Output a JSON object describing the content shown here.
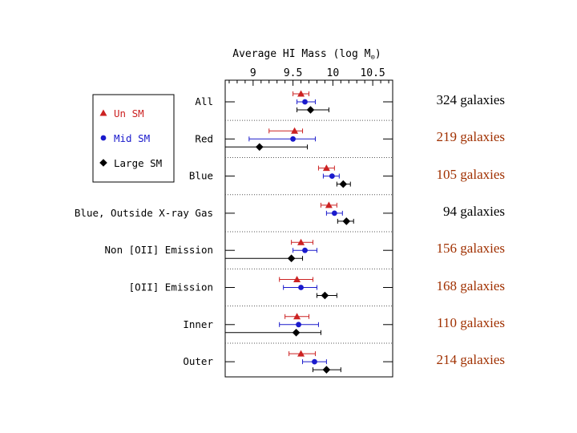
{
  "chart_data": {
    "type": "scatter",
    "title": "Average HI Mass (log M⊙)",
    "xlim": [
      8.65,
      10.75
    ],
    "x_ticks": [
      9,
      9.5,
      10,
      10.5
    ],
    "x_tick_labels": [
      "9",
      "9.5",
      "10",
      "10.5"
    ],
    "series_colors": [
      "#cc2222",
      "#1a1acc",
      "#000000"
    ],
    "legend": [
      {
        "label": "Un SM",
        "color": "#cc2222",
        "marker": "triangle"
      },
      {
        "label": "Mid SM",
        "color": "#1a1acc",
        "marker": "circle"
      },
      {
        "label": "Large SM",
        "color": "#000000",
        "marker": "diamond"
      }
    ],
    "categories": [
      {
        "label": "All",
        "count": "324 galaxies",
        "count_color": "#000000",
        "points": [
          {
            "v": 9.6,
            "lo": 9.5,
            "hi": 9.7
          },
          {
            "v": 9.65,
            "lo": 9.55,
            "hi": 9.78
          },
          {
            "v": 9.72,
            "lo": 9.55,
            "hi": 9.95
          }
        ]
      },
      {
        "label": "Red",
        "count": "219 galaxies",
        "count_color": "#a03000",
        "points": [
          {
            "v": 9.52,
            "lo": 9.2,
            "hi": 9.62
          },
          {
            "v": 9.5,
            "lo": 8.95,
            "hi": 9.78
          },
          {
            "v": 9.08,
            "lo": 8.65,
            "hi": 9.68
          }
        ]
      },
      {
        "label": "Blue",
        "count": "105 galaxies",
        "count_color": "#a03000",
        "points": [
          {
            "v": 9.92,
            "lo": 9.82,
            "hi": 10.02
          },
          {
            "v": 9.99,
            "lo": 9.88,
            "hi": 10.08
          },
          {
            "v": 10.13,
            "lo": 10.05,
            "hi": 10.22
          }
        ]
      },
      {
        "label": "Blue, Outside X-ray Gas",
        "count": "94 galaxies",
        "count_color": "#000000",
        "points": [
          {
            "v": 9.95,
            "lo": 9.85,
            "hi": 10.05
          },
          {
            "v": 10.02,
            "lo": 9.92,
            "hi": 10.12
          },
          {
            "v": 10.17,
            "lo": 10.06,
            "hi": 10.26
          }
        ]
      },
      {
        "label": "Non [OII] Emission",
        "count": "156 galaxies",
        "count_color": "#a03000",
        "points": [
          {
            "v": 9.6,
            "lo": 9.48,
            "hi": 9.75
          },
          {
            "v": 9.65,
            "lo": 9.5,
            "hi": 9.8
          },
          {
            "v": 9.48,
            "lo": 8.65,
            "hi": 9.62
          }
        ]
      },
      {
        "label": "[OII] Emission",
        "count": "168 galaxies",
        "count_color": "#a03000",
        "points": [
          {
            "v": 9.55,
            "lo": 9.33,
            "hi": 9.75
          },
          {
            "v": 9.6,
            "lo": 9.38,
            "hi": 9.8
          },
          {
            "v": 9.9,
            "lo": 9.8,
            "hi": 10.05
          }
        ]
      },
      {
        "label": "Inner",
        "count": "110 galaxies",
        "count_color": "#a03000",
        "points": [
          {
            "v": 9.55,
            "lo": 9.4,
            "hi": 9.7
          },
          {
            "v": 9.57,
            "lo": 9.33,
            "hi": 9.82
          },
          {
            "v": 9.54,
            "lo": 8.65,
            "hi": 9.85
          }
        ]
      },
      {
        "label": "Outer",
        "count": "214 galaxies",
        "count_color": "#a03000",
        "points": [
          {
            "v": 9.6,
            "lo": 9.45,
            "hi": 9.78
          },
          {
            "v": 9.77,
            "lo": 9.62,
            "hi": 9.92
          },
          {
            "v": 9.92,
            "lo": 9.75,
            "hi": 10.1
          }
        ]
      }
    ]
  }
}
